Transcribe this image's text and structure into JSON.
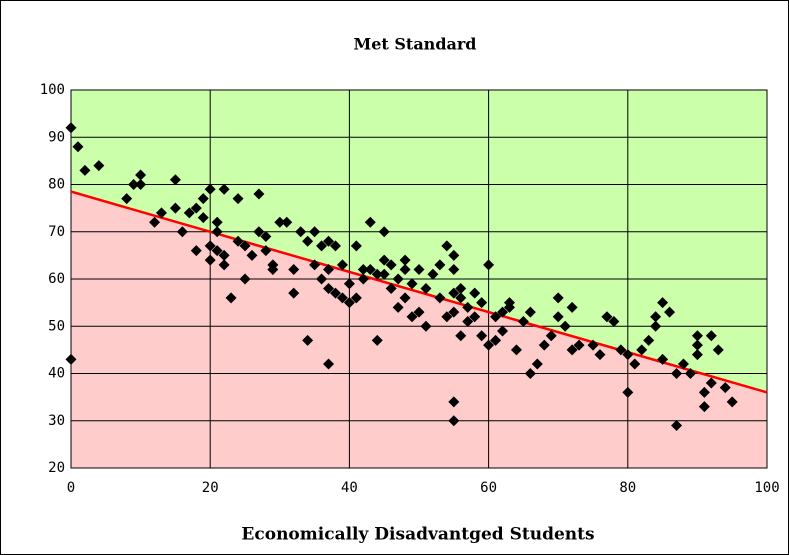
{
  "chart_data": {
    "type": "scatter",
    "title": "Met Standard",
    "x_label": "Economically Disadvantged Students",
    "xlim": [
      0,
      100
    ],
    "ylim": [
      20,
      100
    ],
    "xticks": [
      0,
      20,
      40,
      60,
      80,
      100
    ],
    "yticks": [
      20,
      30,
      40,
      50,
      60,
      70,
      80,
      90,
      100
    ],
    "grid": true,
    "marker_color": "#000000",
    "above_color": "#ccffaa",
    "below_color": "#ffcccc",
    "trendline": {
      "color": "#ff0000",
      "x": [
        0,
        100
      ],
      "values": [
        78.5,
        36
      ]
    },
    "x": [
      0,
      0,
      1,
      2,
      4,
      8,
      9,
      10,
      10,
      12,
      13,
      15,
      15,
      16,
      17,
      18,
      18,
      19,
      19,
      20,
      20,
      20,
      21,
      21,
      21,
      22,
      22,
      22,
      23,
      24,
      24,
      25,
      25,
      26,
      27,
      27,
      28,
      28,
      29,
      29,
      30,
      31,
      32,
      32,
      33,
      34,
      34,
      35,
      35,
      36,
      36,
      37,
      37,
      37,
      37,
      38,
      38,
      39,
      39,
      40,
      40,
      41,
      41,
      42,
      42,
      43,
      43,
      44,
      44,
      45,
      45,
      45,
      46,
      46,
      47,
      47,
      48,
      48,
      48,
      49,
      49,
      50,
      50,
      51,
      51,
      52,
      53,
      53,
      54,
      54,
      55,
      55,
      55,
      55,
      55,
      55,
      56,
      56,
      56,
      57,
      57,
      58,
      58,
      59,
      59,
      60,
      60,
      61,
      61,
      62,
      62,
      63,
      63,
      64,
      65,
      66,
      66,
      67,
      68,
      69,
      70,
      70,
      71,
      72,
      72,
      73,
      75,
      76,
      77,
      78,
      79,
      80,
      80,
      81,
      82,
      83,
      84,
      84,
      85,
      85,
      86,
      87,
      87,
      88,
      89,
      90,
      90,
      90,
      91,
      91,
      92,
      92,
      93,
      94,
      95
    ],
    "values": [
      92,
      43,
      88,
      83,
      84,
      77,
      80,
      82,
      80,
      72,
      74,
      81,
      75,
      70,
      74,
      66,
      75,
      73,
      77,
      67,
      64,
      79,
      72,
      70,
      66,
      79,
      65,
      63,
      56,
      77,
      68,
      67,
      60,
      65,
      78,
      70,
      69,
      66,
      63,
      62,
      72,
      72,
      62,
      57,
      70,
      47,
      68,
      70,
      63,
      60,
      67,
      58,
      62,
      68,
      42,
      67,
      57,
      63,
      56,
      59,
      55,
      56,
      67,
      62,
      60,
      72,
      62,
      47,
      61,
      70,
      64,
      61,
      63,
      58,
      54,
      60,
      62,
      56,
      64,
      52,
      59,
      53,
      62,
      50,
      58,
      61,
      63,
      56,
      52,
      67,
      65,
      62,
      57,
      53,
      34,
      30,
      56,
      48,
      58,
      54,
      51,
      57,
      52,
      55,
      48,
      63,
      46,
      47,
      52,
      49,
      53,
      54,
      55,
      45,
      51,
      53,
      40,
      42,
      46,
      48,
      52,
      56,
      50,
      54,
      45,
      46,
      46,
      44,
      52,
      51,
      45,
      44,
      36,
      42,
      45,
      47,
      50,
      52,
      43,
      55,
      53,
      40,
      29,
      42,
      40,
      44,
      46,
      48,
      36,
      33,
      38,
      48,
      45,
      37,
      34
    ]
  }
}
